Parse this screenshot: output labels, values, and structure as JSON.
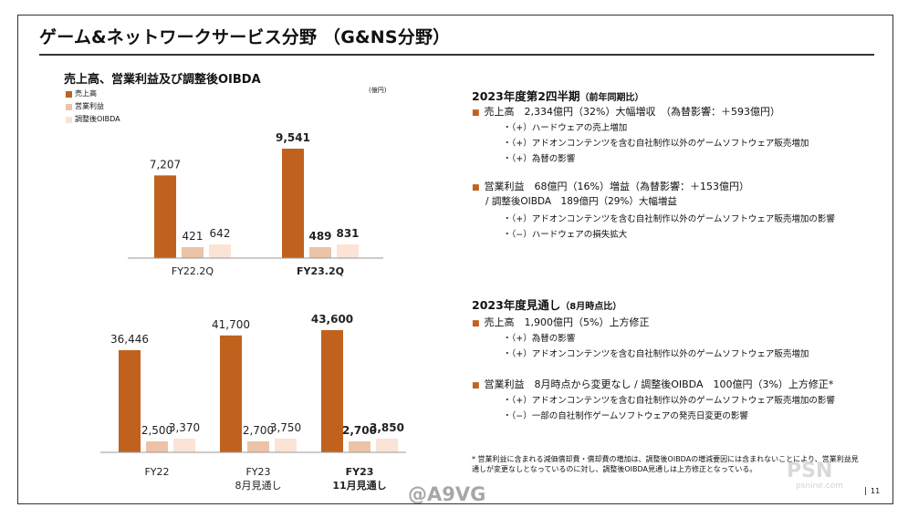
{
  "header": {
    "title": "ゲーム&ネットワークサービス分野 （G&NS分野）"
  },
  "chart_data": [
    {
      "type": "bar",
      "title": "売上高、営業利益及び調整後OIBDA",
      "unit": "(億円)",
      "categories": [
        "FY22.2Q",
        "FY23.2Q"
      ],
      "categories_bold": [
        false,
        true
      ],
      "series": [
        {
          "name": "売上高",
          "values": [
            7207,
            9541
          ],
          "color": "#c0621d"
        },
        {
          "name": "営業利益",
          "values": [
            421,
            489
          ],
          "color": "#ecc3a6"
        },
        {
          "name": "調整後OIBDA",
          "values": [
            642,
            831
          ],
          "color": "#fbe3d6"
        }
      ],
      "value_labels": [
        [
          "7,207",
          "421",
          "642"
        ],
        [
          "9,541",
          "489",
          "831"
        ]
      ]
    },
    {
      "type": "bar",
      "categories": [
        "FY22",
        "FY23\n8月見通し",
        "FY23\n11月見通し"
      ],
      "categories_bold": [
        false,
        false,
        true
      ],
      "series": [
        {
          "name": "売上高",
          "values": [
            36446,
            41700,
            43600
          ],
          "color": "#c0621d"
        },
        {
          "name": "営業利益",
          "values": [
            2500,
            2700,
            2700
          ],
          "color": "#ecc3a6"
        },
        {
          "name": "調整後OIBDA",
          "values": [
            3370,
            3750,
            3850
          ],
          "color": "#fbe3d6"
        }
      ],
      "value_labels": [
        [
          "36,446",
          "2,500",
          "3,370"
        ],
        [
          "41,700",
          "2,700",
          "3,750"
        ],
        [
          "43,600",
          "2,700",
          "3,850"
        ]
      ]
    }
  ],
  "legend": [
    {
      "label": "売上高",
      "color": "#c0621d"
    },
    {
      "label": "営業利益",
      "color": "#ecc3a6"
    },
    {
      "label": "調整後OIBDA",
      "color": "#fbe3d6"
    }
  ],
  "q2": {
    "title": "2023年度第2四半期",
    "note": "（前年同期比）",
    "sales": "売上高　2,334億円（32%）大幅増収　（為替影響：＋593億円）",
    "sales_items": [
      "・（+）ハードウェアの売上増加",
      "・（+）アドオンコンテンツを含む自社制作以外のゲームソフトウェア販売増加",
      "・（+）為替の影響"
    ],
    "op": "営業利益　68億円（16%）増益（為替影響：＋153億円）",
    "oibda": "/ 調整後OIBDA　189億円（29%）大幅増益",
    "op_items": [
      "・（+）アドオンコンテンツを含む自社制作以外のゲームソフトウェア販売増加の影響",
      "・（−）ハードウェアの損失拡大"
    ]
  },
  "forecast": {
    "title": "2023年度見通し",
    "note": "（8月時点比）",
    "sales": "売上高　1,900億円（5%）上方修正",
    "sales_items": [
      "・（+）為替の影響",
      "・（+）アドオンコンテンツを含む自社制作以外のゲームソフトウェア販売増加"
    ],
    "op": "営業利益　8月時点から変更なし / 調整後OIBDA　100億円（3%）上方修正*",
    "op_items": [
      "・（+）アドオンコンテンツを含む自社制作以外のゲームソフトウェア販売増加の影響",
      "・（−）一部の自社制作ゲームソフトウェアの発売日変更の影響"
    ]
  },
  "footnote": "* 営業利益に含まれる減価償却費・償却費の増加は、調整後OIBDAの増減要因には含まれないことにより、営業利益見通しが変更なしとなっているのに対し、調整後OIBDA見通しは上方修正となっている。",
  "watermark": "@A9VG",
  "psn_watermark": "PSN",
  "psn_watermark_sub": "psnine.com",
  "page_number": "11"
}
